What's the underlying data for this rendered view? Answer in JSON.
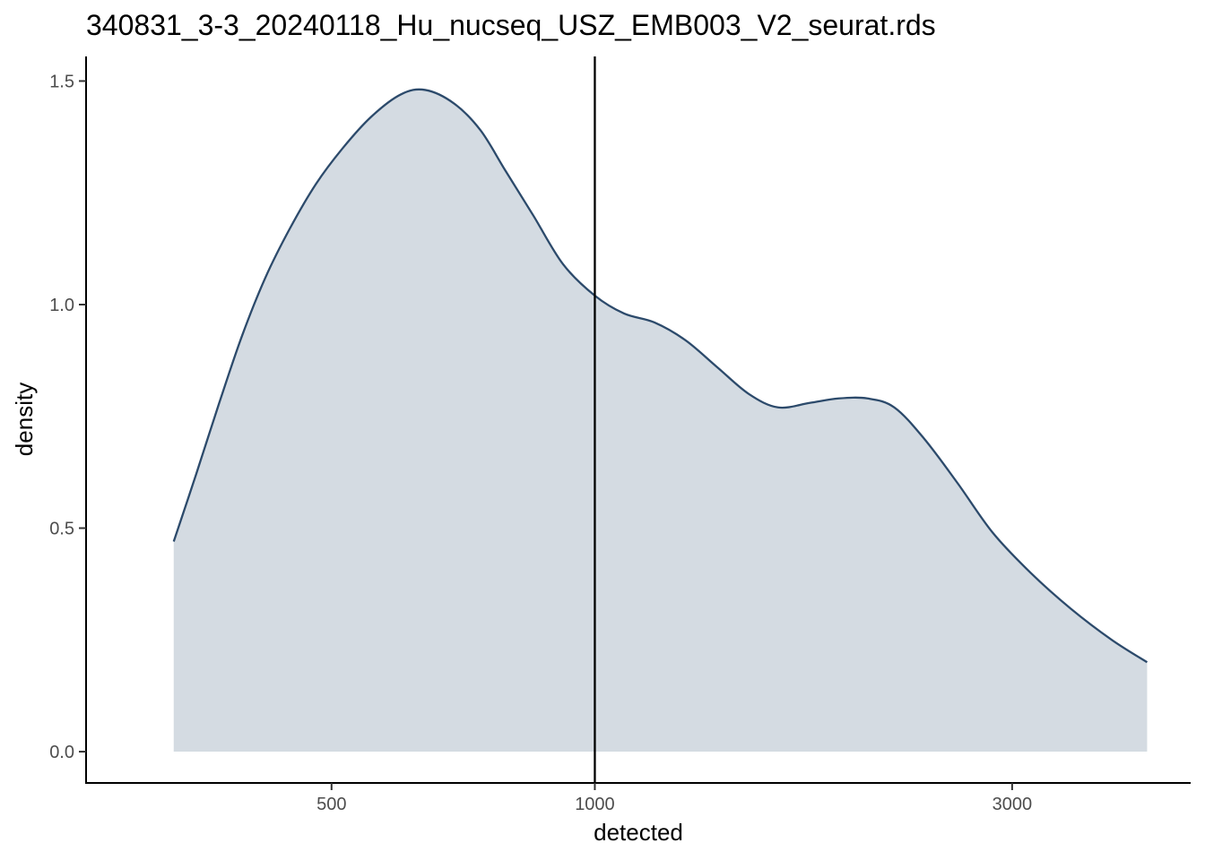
{
  "chart_data": {
    "type": "area",
    "title": "340831_3-3_20240118_Hu_nucseq_USZ_EMB003_V2_seurat.rds",
    "xlabel": "detected",
    "ylabel": "density",
    "x_scale": "log10",
    "xlim": [
      262,
      4800
    ],
    "ylim": [
      -0.07,
      1.555
    ],
    "x_ticks": [
      500,
      1000,
      3000
    ],
    "x_tick_labels": [
      "500",
      "1000",
      "3000"
    ],
    "y_ticks": [
      0.0,
      0.5,
      1.0,
      1.5
    ],
    "y_tick_labels": [
      "0.0",
      "0.5",
      "1.0",
      "1.5"
    ],
    "grid": false,
    "legend": "none",
    "vline": {
      "x": 1000,
      "color": "#000000"
    },
    "series": [
      {
        "line_color": "#2c4a6b",
        "fill_color": "#d4dbe2",
        "x": [
          330,
          350,
          372,
          395,
          420,
          448,
          480,
          515,
          555,
          600,
          640,
          690,
          740,
          790,
          850,
          920,
          1000,
          1080,
          1170,
          1270,
          1380,
          1500,
          1620,
          1760,
          1900,
          2050,
          2200,
          2380,
          2600,
          2850,
          3150,
          3500,
          3900,
          4280
        ],
        "y": [
          0.47,
          0.62,
          0.78,
          0.93,
          1.06,
          1.17,
          1.27,
          1.35,
          1.42,
          1.47,
          1.48,
          1.45,
          1.39,
          1.3,
          1.2,
          1.09,
          1.02,
          0.98,
          0.96,
          0.92,
          0.86,
          0.8,
          0.77,
          0.78,
          0.79,
          0.79,
          0.77,
          0.7,
          0.6,
          0.49,
          0.4,
          0.32,
          0.25,
          0.2
        ]
      }
    ]
  }
}
